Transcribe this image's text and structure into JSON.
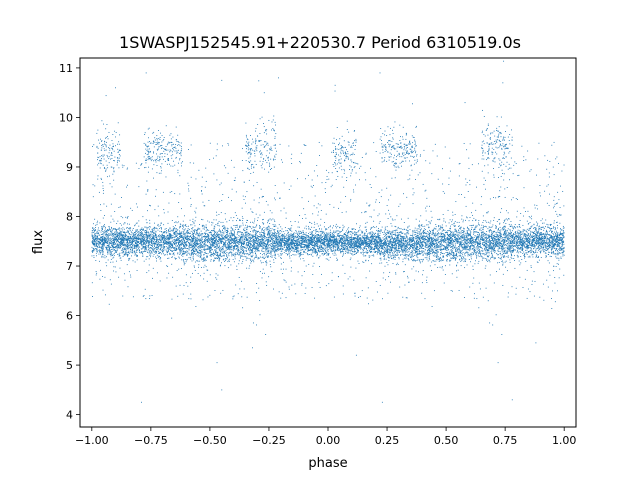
{
  "chart_data": {
    "type": "scatter",
    "title": "1SWASPJ152545.91+220530.7 Period 6310519.0s",
    "xlabel": "phase",
    "ylabel": "flux",
    "xlim": [
      -1.05,
      1.05
    ],
    "ylim": [
      3.75,
      11.2
    ],
    "xticks": [
      -1.0,
      -0.75,
      -0.5,
      -0.25,
      0.0,
      0.25,
      0.5,
      0.75,
      1.0
    ],
    "xtick_labels": [
      "−1.00",
      "−0.75",
      "−0.50",
      "−0.25",
      "0.00",
      "0.25",
      "0.50",
      "0.75",
      "1.00"
    ],
    "yticks": [
      4,
      5,
      6,
      7,
      8,
      9,
      10,
      11
    ],
    "ytick_labels": [
      "4",
      "5",
      "6",
      "7",
      "8",
      "9",
      "10",
      "11"
    ],
    "grid": false,
    "series": [
      {
        "color": "#1f77b4",
        "marker": "point",
        "clusters": [
          {
            "x_range": [
              -1.0,
              -0.62
            ],
            "y_center": 7.5,
            "y_spread": 0.15
          },
          {
            "x_range": [
              -0.62,
              -0.22
            ],
            "y_center": 7.48,
            "y_spread": 0.18
          },
          {
            "x_range": [
              -0.22,
              0.22
            ],
            "y_center": 7.48,
            "y_spread": 0.12
          },
          {
            "x_range": [
              0.22,
              0.38
            ],
            "y_center": 7.45,
            "y_spread": 0.15
          },
          {
            "x_range": [
              0.38,
              0.78
            ],
            "y_center": 7.48,
            "y_spread": 0.18
          },
          {
            "x_range": [
              0.78,
              1.0
            ],
            "y_center": 7.5,
            "y_spread": 0.15
          },
          {
            "x_range": [
              -0.98,
              -0.88
            ],
            "y_center": 9.3,
            "y_spread": 0.25
          },
          {
            "x_range": [
              -0.78,
              -0.62
            ],
            "y_center": 9.35,
            "y_spread": 0.18
          },
          {
            "x_range": [
              -0.35,
              -0.22
            ],
            "y_center": 9.4,
            "y_spread": 0.25
          },
          {
            "x_range": [
              0.02,
              0.12
            ],
            "y_center": 9.3,
            "y_spread": 0.25
          },
          {
            "x_range": [
              0.22,
              0.38
            ],
            "y_center": 9.35,
            "y_spread": 0.18
          },
          {
            "x_range": [
              0.65,
              0.78
            ],
            "y_center": 9.4,
            "y_spread": 0.25
          }
        ],
        "outliers": [
          {
            "x": -0.79,
            "y": 4.25
          },
          {
            "x": -0.45,
            "y": 4.5
          },
          {
            "x": 0.23,
            "y": 4.25
          },
          {
            "x": 0.78,
            "y": 4.3
          },
          {
            "x": -0.32,
            "y": 5.35
          },
          {
            "x": -0.47,
            "y": 5.05
          },
          {
            "x": 0.12,
            "y": 5.2
          },
          {
            "x": 0.72,
            "y": 5.05
          },
          {
            "x": 0.88,
            "y": 5.45
          },
          {
            "x": -0.77,
            "y": 10.9
          },
          {
            "x": -0.21,
            "y": 10.8
          },
          {
            "x": 0.22,
            "y": 10.9
          },
          {
            "x": 0.74,
            "y": 10.7
          },
          {
            "x": -0.9,
            "y": 10.6
          },
          {
            "x": 0.03,
            "y": 10.65
          },
          {
            "x": -0.27,
            "y": 10.5
          },
          {
            "x": 0.58,
            "y": 10.3
          },
          {
            "x": -0.45,
            "y": 10.75
          }
        ]
      }
    ]
  }
}
